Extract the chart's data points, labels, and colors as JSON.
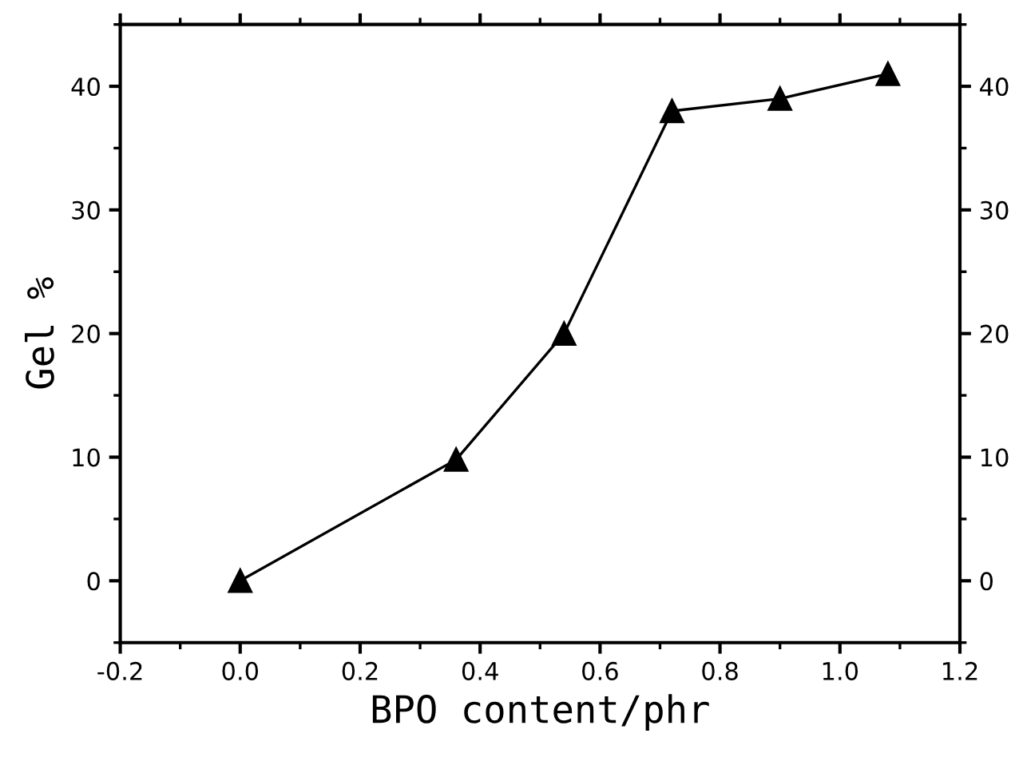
{
  "chart_data": {
    "type": "line",
    "xlabel": "BPO content/phr",
    "ylabel": "Gel %",
    "x": [
      0,
      0.36,
      0.54,
      0.72,
      0.9,
      1.08
    ],
    "series": [
      {
        "color": "#000000",
        "values": [
          0,
          9.8,
          20,
          38,
          39,
          41
        ]
      }
    ],
    "marker": "triangle",
    "line_style": "solid",
    "grid": false,
    "legend": false,
    "xlim": [
      -0.2,
      1.2
    ],
    "xticks": [
      -0.2,
      {
        "value": 0,
        "label": "0.0"
      },
      0.2,
      0.4,
      0.6,
      0.8,
      {
        "value": 1,
        "label": "1.0"
      },
      1.2
    ],
    "ylim": [
      -5,
      45
    ],
    "yticks": [
      0,
      10,
      20,
      30,
      40
    ],
    "y2lim": [
      -5,
      45
    ],
    "y2ticks": [
      0,
      10,
      20,
      30,
      40
    ]
  }
}
